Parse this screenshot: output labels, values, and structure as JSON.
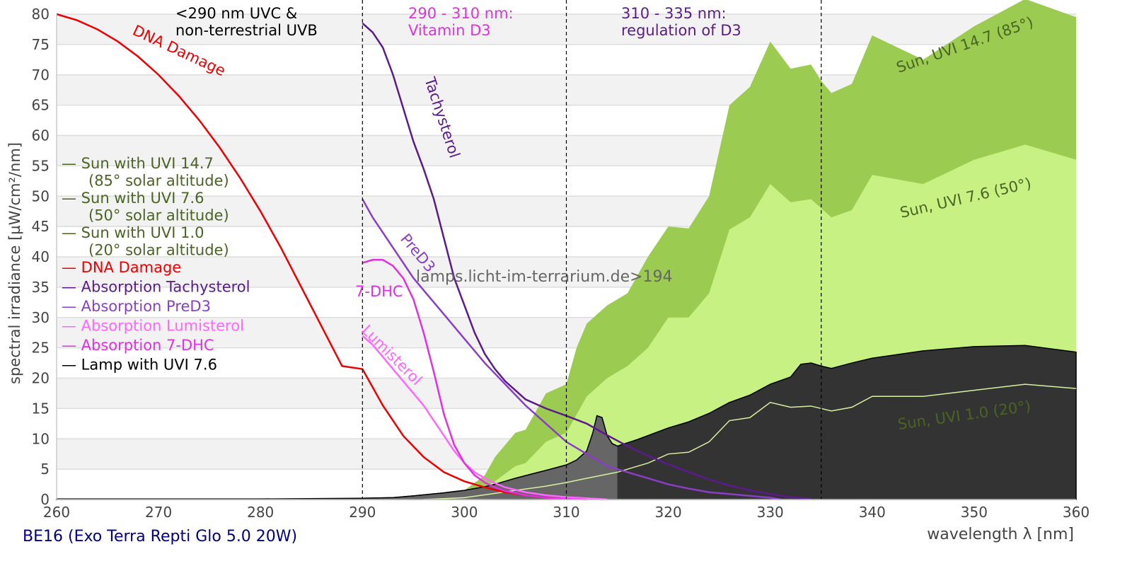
{
  "chart_data": {
    "type": "area",
    "title": "",
    "xlabel": "wavelength λ [nm]",
    "ylabel": "spectral irradiance [µW/cm²/nm]",
    "xlim": [
      260,
      360
    ],
    "ylim": [
      0,
      80
    ],
    "x_ticks": [
      "260",
      "270",
      "280",
      "290",
      "300",
      "310",
      "320",
      "330",
      "340",
      "350",
      "360"
    ],
    "y_ticks": [
      "0",
      "5",
      "10",
      "15",
      "20",
      "25",
      "30",
      "35",
      "40",
      "45",
      "50",
      "55",
      "60",
      "65",
      "70",
      "75",
      "80"
    ],
    "grid": "horizontal alternating bands",
    "legend_position": "center-left",
    "region_markers": [
      290,
      310,
      335
    ],
    "region_labels": [
      {
        "text": [
          "<290 nm UVC &",
          "non-terrestrial UVB"
        ],
        "color": "#000000"
      },
      {
        "text": [
          "290 - 310 nm:",
          "Vitamin D3"
        ],
        "color": "#e030e0"
      },
      {
        "text": [
          "310 - 335 nm:",
          "regulation of D3"
        ],
        "color": "#5c1a8c"
      }
    ],
    "watermark": "lamps.licht-im-terrarium.de>194",
    "series": [
      {
        "name": "Sun with UVI 14.7 (85° solar altitude)",
        "legend": [
          "— Sun with UVI 14.7",
          "(85° solar altitude)"
        ],
        "inline_label": "Sun, UVI 14.7 (85°)",
        "style": "area",
        "color": "#9bcb50",
        "legend_color": "#4a6423",
        "x": [
          293,
          296,
          298,
          300,
          302,
          303,
          305,
          306,
          308,
          310,
          311,
          312,
          314,
          316,
          318,
          320,
          322,
          324,
          326,
          328,
          330,
          332,
          334,
          335,
          336,
          338,
          340,
          345,
          350,
          355,
          360
        ],
        "y": [
          0,
          0.3,
          0.8,
          1.5,
          4,
          7,
          11,
          11.5,
          17.5,
          19,
          25,
          29,
          32,
          34,
          40,
          45,
          44.7,
          50,
          65,
          68,
          75.5,
          71,
          71.7,
          69,
          67,
          68.5,
          76.5,
          72.5,
          78,
          82.5,
          79.5
        ]
      },
      {
        "name": "Sun with UVI 7.6 (50° solar altitude)",
        "legend": [
          "— Sun with UVI 7.6",
          "(50° solar altitude)"
        ],
        "inline_label": "Sun, UVI 7.6 (50°)",
        "style": "area",
        "color": "#c8f183",
        "legend_color": "#4a6423",
        "x": [
          295,
          298,
          300,
          302,
          303,
          305,
          306,
          308,
          310,
          312,
          314,
          316,
          318,
          320,
          322,
          324,
          326,
          328,
          330,
          332,
          334,
          335,
          336,
          338,
          340,
          345,
          350,
          355,
          360
        ],
        "y": [
          0,
          0.3,
          0.6,
          2,
          3,
          5.5,
          6,
          9.5,
          11,
          17,
          20,
          22,
          25,
          30,
          30,
          34,
          44.5,
          46.5,
          52,
          49,
          49.5,
          48,
          46.5,
          47.7,
          53.5,
          52,
          56,
          58.5,
          56
        ]
      },
      {
        "name": "Sun with UVI 1.0 (20° solar altitude)",
        "legend": [
          "— Sun with UVI 1.0",
          "(20° solar altitude)"
        ],
        "inline_label": "Sun, UVI 1.0 (20°)",
        "style": "line",
        "color": "#d8f0a0",
        "legend_color": "#4a6423",
        "x": [
          296,
          300,
          303,
          305,
          308,
          310,
          312,
          315,
          318,
          320,
          322,
          324,
          326,
          328,
          330,
          332,
          334,
          336,
          338,
          340,
          345,
          350,
          355,
          360
        ],
        "y": [
          0,
          0.3,
          1,
          1.5,
          2.2,
          2.8,
          3.5,
          4.5,
          6,
          7.5,
          7.8,
          9.5,
          13,
          13.5,
          16,
          15.2,
          15.4,
          14.6,
          15.2,
          17,
          17,
          18,
          19,
          18.3
        ]
      },
      {
        "name": "DNA Damage",
        "legend": [
          "— DNA Damage"
        ],
        "inline_label": "DNA Damage",
        "style": "line",
        "color": "#ee0000",
        "x": [
          260,
          262,
          264,
          266,
          268,
          270,
          272,
          274,
          276,
          278,
          280,
          282,
          284,
          286,
          288,
          290,
          292,
          294,
          296,
          298,
          300,
          302,
          304,
          306,
          308,
          310
        ],
        "y": [
          80,
          79,
          77.5,
          75.5,
          73,
          70,
          66.5,
          62.5,
          58,
          53,
          47.5,
          41.5,
          35,
          28.5,
          22,
          21.5,
          15.5,
          10.5,
          7,
          4.5,
          3,
          2,
          1.2,
          0.7,
          0.3,
          0.1
        ]
      },
      {
        "name": "Absorption Tachysterol",
        "legend": [
          "— Absorption Tachysterol"
        ],
        "inline_label": "Tachysterol",
        "style": "line",
        "color": "#5c1a8c",
        "x": [
          290,
          291,
          292,
          293,
          294,
          295,
          296,
          297,
          298,
          299,
          300,
          301,
          302,
          303,
          304,
          306,
          308,
          310,
          312,
          314,
          316,
          318,
          320,
          322,
          324,
          326,
          328,
          330,
          332,
          334
        ],
        "y": [
          78.5,
          77,
          74.5,
          70,
          64.5,
          59,
          54.5,
          49.5,
          43,
          36.5,
          32,
          27.5,
          24,
          21.5,
          19.5,
          16.5,
          15,
          13.8,
          12.5,
          10.6,
          8.8,
          7.2,
          5.8,
          4.5,
          3.3,
          2.3,
          1.5,
          0.9,
          0.4,
          0.1
        ]
      },
      {
        "name": "Absorption PreD3",
        "legend": [
          "— Absorption PreD3"
        ],
        "inline_label": "PreD3",
        "style": "line",
        "color": "#8a3ec8",
        "x": [
          290,
          291,
          292,
          293,
          294,
          295,
          296,
          297,
          298,
          300,
          302,
          304,
          306,
          308,
          310,
          312,
          314,
          316,
          318,
          320,
          322,
          324,
          326,
          328,
          330,
          331
        ],
        "y": [
          49.5,
          46.5,
          44,
          41.5,
          39,
          36.5,
          34.5,
          32.5,
          30.5,
          26.5,
          22.5,
          19,
          15.5,
          12.5,
          9.5,
          7.5,
          5.5,
          4.5,
          3.5,
          2.5,
          1.8,
          1.2,
          0.9,
          0.6,
          0.3,
          0
        ]
      },
      {
        "name": "Absorption Lumisterol",
        "legend": [
          "— Absorption Lumisterol"
        ],
        "inline_label": "Lumisterol",
        "style": "line",
        "color": "#ff66ff",
        "x": [
          290,
          291,
          292,
          293,
          294,
          295,
          296,
          297,
          298,
          299,
          300,
          301,
          302,
          303,
          304,
          306,
          308,
          310,
          312,
          314
        ],
        "y": [
          27,
          25.5,
          23.5,
          21.5,
          19.5,
          17.5,
          15.5,
          13,
          10.5,
          8,
          6,
          4.5,
          3.5,
          2.7,
          2,
          1.2,
          0.7,
          0.4,
          0.2,
          0
        ]
      },
      {
        "name": "Absorption 7-DHC",
        "legend": [
          "— Absorption 7-DHC"
        ],
        "inline_label": "7-DHC",
        "style": "line",
        "color": "#e030e0",
        "x": [
          290,
          291,
          292,
          293,
          294,
          295,
          296,
          297,
          298,
          299,
          300,
          301,
          302,
          303,
          304,
          306,
          308,
          310,
          312
        ],
        "y": [
          39,
          39.5,
          39.5,
          38.5,
          36.5,
          33,
          27.5,
          21,
          14,
          9,
          6,
          4,
          2.8,
          2,
          1.4,
          0.7,
          0.3,
          0.1,
          0
        ]
      },
      {
        "name": "Lamp with UVI 7.6",
        "legend": [
          "— Lamp with UVI 7.6"
        ],
        "style": "area",
        "color": "#333333",
        "highlight_color": "#666666",
        "highlight_range": [
          290,
          315
        ],
        "x": [
          260,
          270,
          280,
          290,
          293,
          295,
          298,
          300,
          302,
          303,
          305,
          308,
          310,
          311,
          312,
          312.6,
          313,
          313.5,
          314,
          314.5,
          315,
          317,
          320,
          322,
          324,
          326,
          328,
          330,
          332,
          333,
          334,
          335,
          336,
          338,
          340,
          345,
          350,
          355,
          360
        ],
        "y": [
          0.1,
          0.1,
          0.1,
          0.2,
          0.3,
          0.6,
          1.1,
          1.5,
          2.1,
          2.5,
          3.5,
          4.8,
          5.7,
          6.5,
          8,
          11,
          13.8,
          13.5,
          10.5,
          9.2,
          8.8,
          9.9,
          11.8,
          12.8,
          14.2,
          16,
          17.2,
          19,
          20.2,
          22.3,
          22.5,
          22,
          21.6,
          22.5,
          23.3,
          24.5,
          25.2,
          25.4,
          24.3
        ]
      }
    ]
  },
  "footer": {
    "lamp_name": "BE16 (Exo Terra Repti Glo 5.0 20W)"
  }
}
